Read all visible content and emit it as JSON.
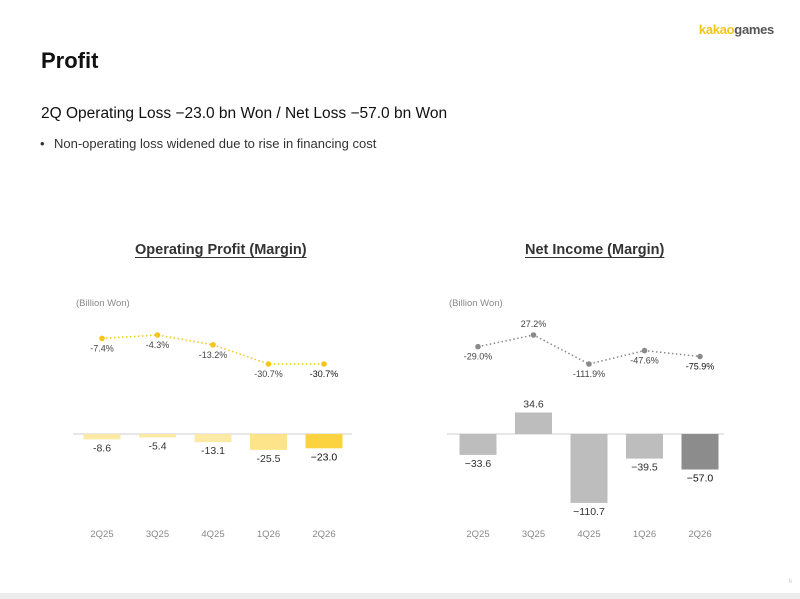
{
  "brand": {
    "part1": "kakao",
    "part2": "games"
  },
  "page_title": "Profit",
  "headline": "2Q Operating Loss  −23.0 bn Won / Net Loss −57.0 bn Won",
  "bullet": "Non-operating loss widened due to rise in financing cost",
  "page_number": "6",
  "colors": {
    "op_bars": [
      "#fbe9a6",
      "#fbe9a6",
      "#fbe9a6",
      "#fde38a",
      "#fbd23f"
    ],
    "op_line": "#f5c518",
    "ni_bars": [
      "#bdbdbd",
      "#bdbdbd",
      "#bdbdbd",
      "#bdbdbd",
      "#8c8c8c"
    ],
    "ni_line": "#8a8a8a"
  },
  "chart_data": [
    {
      "type": "bar",
      "title": "Operating Profit (Margin)",
      "unit": "(Billion Won)",
      "categories": [
        "2Q25",
        "3Q25",
        "4Q25",
        "1Q26",
        "2Q26"
      ],
      "values": [
        -8.6,
        -5.4,
        -13.1,
        -25.5,
        -23.0
      ],
      "value_labels": [
        "-8.6",
        "-5.4",
        "-13.1",
        "-25.5",
        "−23.0"
      ],
      "margin": [
        -7.4,
        -4.3,
        -13.2,
        -30.7,
        -30.7
      ],
      "margin_labels": [
        "-7.4%",
        "-4.3%",
        "-13.2%",
        "-30.7%",
        "-30.7%"
      ],
      "ylim": [
        -130,
        50
      ]
    },
    {
      "type": "bar",
      "title": "Net Income (Margin)",
      "unit": "(Billion Won)",
      "categories": [
        "2Q25",
        "3Q25",
        "4Q25",
        "1Q26",
        "2Q26"
      ],
      "values": [
        -33.6,
        34.6,
        -110.7,
        -39.5,
        -57.0
      ],
      "value_labels": [
        "−33.6",
        "34.6",
        "−110.7",
        "−39.5",
        "−57.0"
      ],
      "margin": [
        -29.0,
        27.2,
        -111.9,
        -47.6,
        -75.9
      ],
      "margin_labels": [
        "-29.0%",
        "27.2%",
        "-111.9%",
        "-47.6%",
        "-75.9%"
      ],
      "ylim": [
        -130,
        50
      ]
    }
  ]
}
